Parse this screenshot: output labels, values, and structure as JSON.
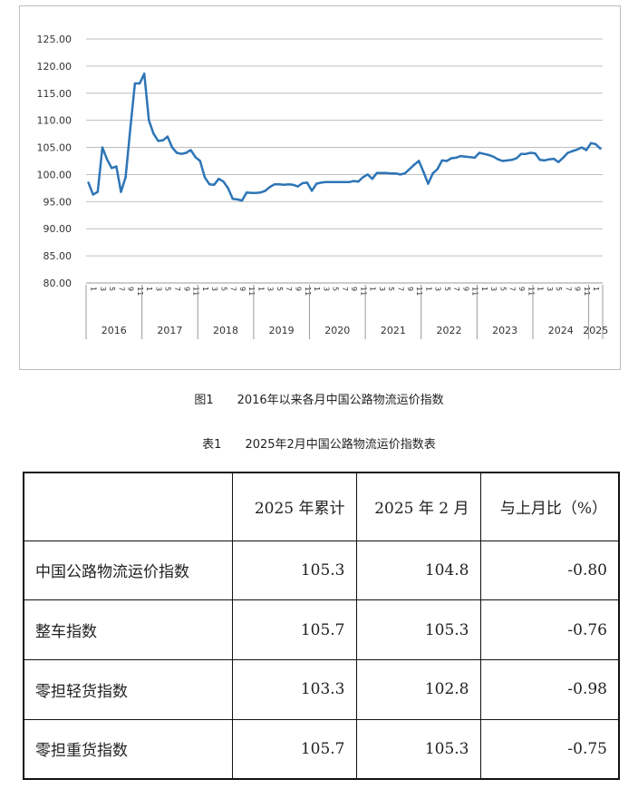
{
  "figure_caption": {
    "number": "图1",
    "text": "2016年以来各月中国公路物流运价指数"
  },
  "table_caption": {
    "number": "表1",
    "text": "2025年2月中国公路物流运价指数表"
  },
  "table": {
    "headers": [
      "",
      "2025 年累计",
      "2025 年 2 月",
      "与上月比（%）"
    ],
    "rows": [
      [
        "中国公路物流运价指数",
        "105.3",
        "104.8",
        "-0.80"
      ],
      [
        "整车指数",
        "105.7",
        "105.3",
        "-0.76"
      ],
      [
        "零担轻货指数",
        "103.3",
        "102.8",
        "-0.98"
      ],
      [
        "零担重货指数",
        "105.7",
        "105.3",
        "-0.75"
      ]
    ]
  },
  "chart_data": {
    "type": "line",
    "line_color": "#2e75b6",
    "grid": true,
    "ylim": [
      80,
      125
    ],
    "yticks": [
      "80.00",
      "85.00",
      "90.00",
      "95.00",
      "100.00",
      "105.00",
      "110.00",
      "115.00",
      "120.00",
      "125.00"
    ],
    "years": [
      "2016",
      "2017",
      "2018",
      "2019",
      "2020",
      "2021",
      "2022",
      "2023",
      "2024",
      "2025"
    ],
    "x_month_ticks": [
      "1",
      "3",
      "5",
      "7",
      "9",
      "11",
      "1",
      "3",
      "5",
      "7",
      "9",
      "11",
      "1",
      "3",
      "5",
      "7",
      "9",
      "11",
      "1",
      "3",
      "5",
      "7",
      "9",
      "11",
      "1",
      "3",
      "5",
      "7",
      "9",
      "11",
      "1",
      "3",
      "5",
      "7",
      "9",
      "11",
      "1",
      "3",
      "5",
      "7",
      "9",
      "11",
      "1",
      "3",
      "5",
      "7",
      "9",
      "11",
      "1",
      "3",
      "5",
      "7",
      "9",
      "11",
      "1"
    ],
    "series": [
      {
        "values": [
          98.5,
          96.3,
          96.8,
          105.0,
          102.8,
          101.2,
          101.5,
          96.8,
          99.5,
          108.5,
          116.8,
          116.8,
          118.6,
          110.0,
          107.5,
          106.2,
          106.3,
          107.0,
          105.0,
          104.0,
          103.8,
          104.0,
          104.5,
          103.2,
          102.5,
          99.5,
          98.2,
          98.1,
          99.2,
          98.7,
          97.5,
          95.5,
          95.4,
          95.2,
          96.7,
          96.6,
          96.6,
          96.7,
          97.0,
          97.7,
          98.2,
          98.2,
          98.1,
          98.2,
          98.1,
          97.8,
          98.4,
          98.5,
          97.0,
          98.3,
          98.5,
          98.6,
          98.6,
          98.6,
          98.6,
          98.6,
          98.6,
          98.8,
          98.7,
          99.5,
          100.0,
          99.2,
          100.3,
          100.3,
          100.3,
          100.2,
          100.2,
          100.0,
          100.2,
          101.0,
          101.8,
          102.5,
          100.5,
          98.3,
          100.2,
          101.0,
          102.6,
          102.5,
          103.0,
          103.1,
          103.4,
          103.3,
          103.2,
          103.1,
          104.0,
          103.8,
          103.6,
          103.3,
          102.8,
          102.5,
          102.6,
          102.7,
          103.0,
          103.8,
          103.8,
          104.0,
          103.9,
          102.7,
          102.6,
          102.8,
          102.9,
          102.3,
          103.1,
          104.0,
          104.3,
          104.6,
          105.0,
          104.5,
          105.8,
          105.6,
          104.8
        ]
      }
    ]
  }
}
